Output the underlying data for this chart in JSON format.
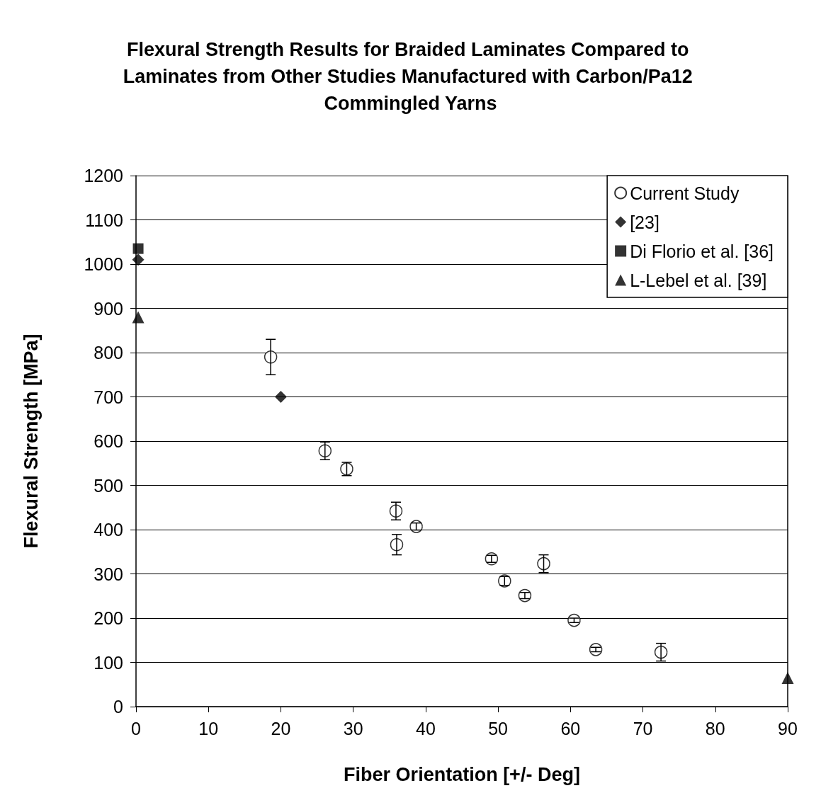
{
  "chart_data": {
    "type": "scatter",
    "title": "Flexural Strength Results for Braided Laminates Compared to Laminates from Other Studies Manufactured with Carbon/Pa12 Commingled Yarns",
    "xlabel": "Fiber Orientation [+/- Deg]",
    "ylabel": "Flexural Strength [MPa]",
    "xlim": [
      0,
      90
    ],
    "xticks": [
      0,
      10,
      20,
      30,
      40,
      50,
      60,
      70,
      80,
      90
    ],
    "ylim": [
      0,
      1200
    ],
    "yticks": [
      0,
      100,
      200,
      300,
      400,
      500,
      600,
      700,
      800,
      900,
      1000,
      1100,
      1200
    ],
    "grid": "y",
    "legend": "top right",
    "series": [
      {
        "name": "Current Study",
        "color": "#000000",
        "marker": "circle",
        "x": [
          18.6,
          26.1,
          29.1,
          35.9,
          36.0,
          38.7,
          49.1,
          50.9,
          53.7,
          56.3,
          60.5,
          63.5,
          72.5
        ],
        "values": [
          790,
          578,
          537,
          442,
          366,
          407,
          334,
          284,
          251,
          323,
          195,
          129,
          123
        ],
        "errors": [
          40,
          20,
          15,
          20,
          23,
          8,
          8,
          10,
          7,
          20,
          5,
          5,
          20
        ]
      },
      {
        "name": "[23]",
        "color": "#000000",
        "marker": "diamond",
        "x": [
          0.3,
          20
        ],
        "values": [
          1010,
          700
        ]
      },
      {
        "name": "Di Florio et al. [36]",
        "color": "#000000",
        "marker": "square",
        "x": [
          0.3
        ],
        "values": [
          1035
        ]
      },
      {
        "name": "L-Lebel et al. [39]",
        "color": "#000000",
        "marker": "triangle",
        "x": [
          0.3,
          90
        ],
        "values": [
          880,
          65
        ]
      }
    ]
  }
}
